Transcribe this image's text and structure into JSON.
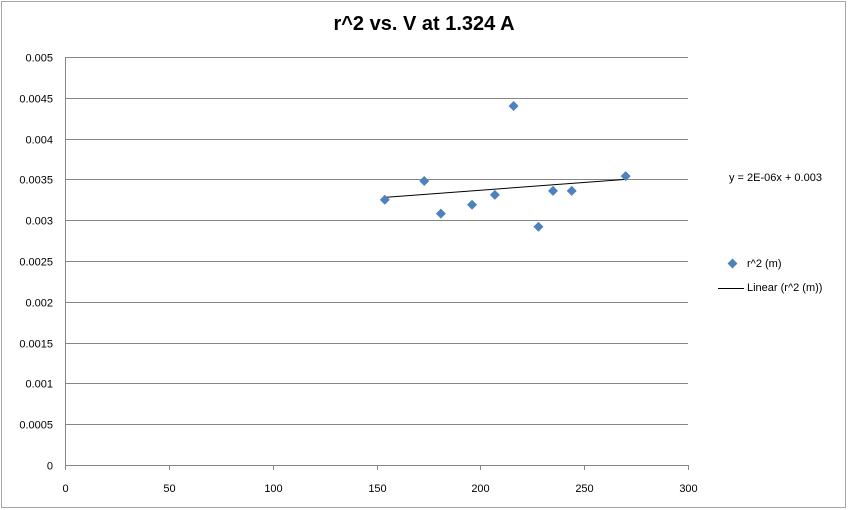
{
  "chart_data": {
    "type": "scatter",
    "title": "r^2 vs. V at 1.324 A",
    "xlabel": "",
    "ylabel": "",
    "xlim": [
      0,
      300
    ],
    "ylim": [
      0,
      0.005
    ],
    "x_ticks": [
      "0",
      "50",
      "100",
      "150",
      "200",
      "250",
      "300"
    ],
    "y_ticks": [
      "0",
      "0.0005",
      "0.001",
      "0.0015",
      "0.002",
      "0.0025",
      "0.003",
      "0.0035",
      "0.004",
      "0.0045",
      "0.005"
    ],
    "grid": "horizontal",
    "legend_position": "right",
    "series": [
      {
        "name": "r^2 (m)",
        "color": "#4f81bd",
        "marker": "diamond",
        "points": [
          [
            154,
            0.00325
          ],
          [
            173,
            0.00348
          ],
          [
            181,
            0.00308
          ],
          [
            196,
            0.00319
          ],
          [
            207,
            0.00331
          ],
          [
            216,
            0.0044
          ],
          [
            228,
            0.00292
          ],
          [
            235,
            0.00336
          ],
          [
            244,
            0.00336
          ],
          [
            270,
            0.00354
          ]
        ]
      }
    ],
    "trendline": {
      "name": "Linear (r^2 (m))",
      "color": "#000000",
      "x_range": [
        154,
        270
      ],
      "y_values": [
        0.00328,
        0.0035
      ],
      "equation": "y = 2E-06x + 0.003"
    }
  }
}
